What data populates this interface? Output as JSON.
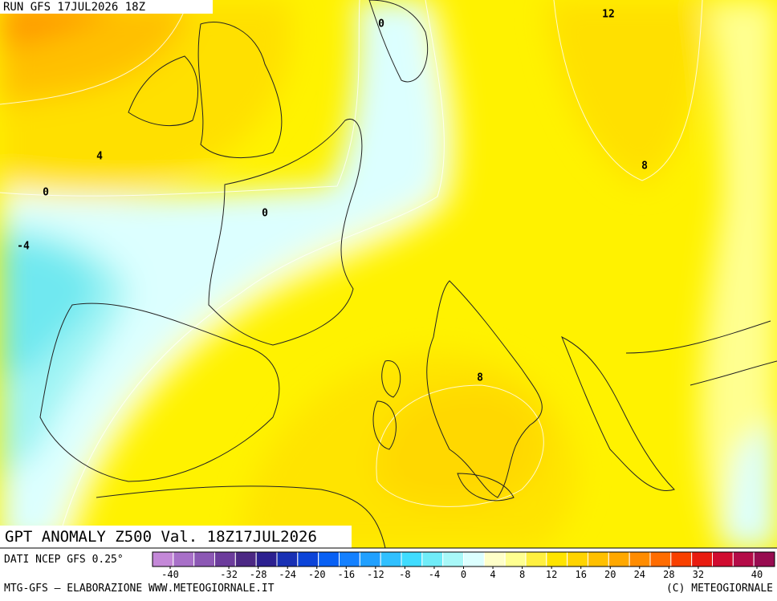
{
  "header": {
    "run": "RUN GFS 17JUL2026 18Z"
  },
  "contour_labels": [
    "0",
    "12",
    "4",
    "8",
    "0",
    "0",
    "-4",
    "8"
  ],
  "map_title": "GPT ANOMALY Z500 Val. 18Z17JUL2026",
  "footer": {
    "source": "DATI NCEP GFS 0.25°",
    "credit": "MTG-GFS — ELABORAZIONE WWW.METEOGIORNALE.IT",
    "copyright": "(C) METEOGIORNALE"
  },
  "colorbar": {
    "colors": [
      "#c488d8",
      "#a870c8",
      "#8c58b4",
      "#6c3c9c",
      "#4c2884",
      "#2c2090",
      "#1830b4",
      "#0c44d8",
      "#0860f4",
      "#1480ff",
      "#20a0ff",
      "#30c0ff",
      "#40dcff",
      "#70ecf8",
      "#a8f8f8",
      "#dcffff",
      "#ffffc8",
      "#ffff90",
      "#fff040",
      "#ffe400",
      "#ffd400",
      "#ffc000",
      "#ffa800",
      "#ff8c00",
      "#ff6c00",
      "#f84000",
      "#e81c10",
      "#d00c30",
      "#b40c48",
      "#980c50"
    ],
    "ticks": [
      -40,
      -32,
      -28,
      -24,
      -20,
      -16,
      -12,
      -8,
      -4,
      0,
      4,
      8,
      12,
      16,
      20,
      24,
      28,
      32,
      40
    ]
  }
}
